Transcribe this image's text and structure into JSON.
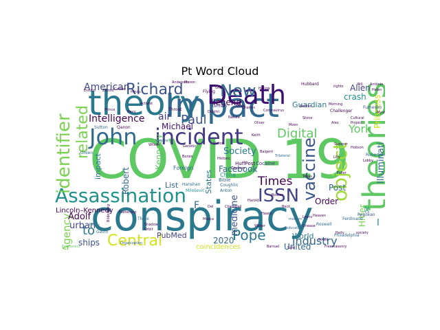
{
  "title": "Pt Word Cloud",
  "words": [
    {
      "text": "COVID-19",
      "color": "#5ec962"
    },
    {
      "text": "conspiracy",
      "color": "#2a788e"
    },
    {
      "text": "theory",
      "color": "#2a788e"
    },
    {
      "text": "Impact",
      "color": "#31688e"
    },
    {
      "text": "theories",
      "color": "#5ec962"
    },
    {
      "text": "Death",
      "color": "#3b0f70"
    },
    {
      "text": "incident",
      "color": "#443983"
    },
    {
      "text": "John",
      "color": "#31688e"
    },
    {
      "text": "Assassination",
      "color": "#21918c"
    },
    {
      "text": "object",
      "color": "#a0da39"
    },
    {
      "text": "identifier",
      "color": "#7ad151"
    },
    {
      "text": "ISSN",
      "color": "#414487"
    },
    {
      "text": "Central",
      "color": "#d2e21b"
    },
    {
      "text": "vaccine",
      "color": "#3b528b"
    },
    {
      "text": "New",
      "color": "#31688e"
    },
    {
      "text": "Richard",
      "color": "#3b528b"
    },
    {
      "text": "Pope",
      "color": "#2a788e"
    },
    {
      "text": "related",
      "color": "#7ad151"
    },
    {
      "text": "Paul",
      "color": "#3b528b"
    },
    {
      "text": "Digital",
      "color": "#5ec962"
    },
    {
      "text": "Times",
      "color": "#440154"
    },
    {
      "text": "industry",
      "color": "#31688e"
    },
    {
      "text": "to",
      "color": "#2a788e"
    },
    {
      "text": "American",
      "color": "#414487"
    },
    {
      "text": "Intelligence",
      "color": "#440154"
    },
    {
      "text": "Agency",
      "color": "#7ad151"
    },
    {
      "text": "York",
      "color": "#5ec962"
    },
    {
      "text": "Alien",
      "color": "#414487"
    },
    {
      "text": "crash",
      "color": "#21918c"
    },
    {
      "text": "Guardian",
      "color": "#2a788e"
    },
    {
      "text": "Society",
      "color": "#2a788e"
    },
    {
      "text": "Facebook",
      "color": "#31688e"
    },
    {
      "text": "Illuminati",
      "color": "#31688e"
    },
    {
      "text": "Princess",
      "color": "#d2e21b"
    },
    {
      "text": "Adolf",
      "color": "#440154"
    },
    {
      "text": "urban",
      "color": "#414487"
    },
    {
      "text": "ships",
      "color": "#3b528b"
    },
    {
      "text": "PubMed",
      "color": "#414487"
    },
    {
      "text": "2020",
      "color": "#31688e"
    },
    {
      "text": "United",
      "color": "#31688e"
    },
    {
      "text": "Post",
      "color": "#31688e"
    },
    {
      "text": "Order",
      "color": "#440154"
    },
    {
      "text": "World",
      "color": "#2a788e"
    },
    {
      "text": "Hitler",
      "color": "#7ad151"
    },
    {
      "text": "Michael",
      "color": "#3b0f70"
    },
    {
      "text": "air",
      "color": "#443983"
    },
    {
      "text": "legend",
      "color": "#440154"
    },
    {
      "text": "Kennedy",
      "color": "#5ec962"
    },
    {
      "text": "impact",
      "color": "#2a788e"
    },
    {
      "text": "Robert",
      "color": "#31688e"
    },
    {
      "text": "List",
      "color": "#31688e"
    },
    {
      "text": "States",
      "color": "#2a788e"
    },
    {
      "text": "medicine",
      "color": "#3b528b"
    },
    {
      "text": "Lincoln–Kennedy",
      "color": "#440154"
    },
    {
      "text": "coincidences",
      "color": "#d2e21b"
    },
    {
      "text": "F.",
      "color": "#31688e"
    },
    {
      "text": "X",
      "color": "#21918c"
    },
    {
      "text": "I",
      "color": "#21918c"
    },
    {
      "text": "Foreign",
      "color": "#31688e"
    },
    {
      "text": "China",
      "color": "#21918c"
    },
    {
      "text": "Bible",
      "color": "#31688e"
    },
    {
      "text": "HuffPost",
      "color": "#440154"
    },
    {
      "text": "Cocaine",
      "color": "#443983"
    },
    {
      "text": "Thule",
      "color": "#31688e"
    },
    {
      "text": "Roswell",
      "color": "#31688e"
    },
    {
      "text": "Philadelphia",
      "color": "#31688e"
    },
    {
      "text": "Robertson",
      "color": "#31688e"
    },
    {
      "text": "Hubbard",
      "color": "#440154"
    },
    {
      "text": "Fumenko",
      "color": "#3b528b"
    },
    {
      "text": "Challenger",
      "color": "#440154"
    },
    {
      "text": "Flattening",
      "color": "#440154"
    },
    {
      "text": "Ferdinand",
      "color": "#31688e"
    },
    {
      "text": "Replikan",
      "color": "#3b528b"
    },
    {
      "text": "Hanshan",
      "color": "#31688e"
    },
    {
      "text": "Milošević",
      "color": "#21918c"
    },
    {
      "text": "Coughlin",
      "color": "#31688e"
    },
    {
      "text": "Anton",
      "color": "#31688e"
    },
    {
      "text": "Grey",
      "color": "#440154"
    },
    {
      "text": "Lennon",
      "color": "#414487"
    },
    {
      "text": "Throat",
      "color": "#440154"
    },
    {
      "text": "Green",
      "color": "#31688e"
    },
    {
      "text": "Sutton",
      "color": "#31688e"
    },
    {
      "text": "Gavin",
      "color": "#31688e"
    },
    {
      "text": "Qanon",
      "color": "#440154"
    },
    {
      "text": "Flying",
      "color": "#440154"
    },
    {
      "text": "Estulin",
      "color": "#440154"
    },
    {
      "text": "Zionist",
      "color": "#440154"
    },
    {
      "text": "Cultural",
      "color": "#440154"
    },
    {
      "text": "Project",
      "color": "#440154"
    },
    {
      "text": "Hindu",
      "color": "#2a788e"
    },
    {
      "text": "activist",
      "color": "#440154"
    },
    {
      "text": "Vaccine",
      "color": "#31688e"
    },
    {
      "text": "education",
      "color": "#31688e"
    },
    {
      "text": "modern",
      "color": "#31688e"
    },
    {
      "text": "Trilateral",
      "color": "#31688e"
    },
    {
      "text": "Party",
      "color": "#440154"
    },
    {
      "text": "South",
      "color": "#440154"
    },
    {
      "text": "Safe",
      "color": "#440154"
    },
    {
      "text": "Organization",
      "color": "#31688e"
    },
    {
      "text": "Benton",
      "color": "#440154"
    },
    {
      "text": "Nature",
      "color": "#440154"
    },
    {
      "text": "Hindu",
      "color": "#440154"
    },
    {
      "text": "Chemtrail",
      "color": "#440154"
    },
    {
      "text": "Del",
      "color": "#440154"
    },
    {
      "text": "Charles",
      "color": "#440154"
    },
    {
      "text": "Morning",
      "color": "#440154"
    },
    {
      "text": "Harold",
      "color": "#440154"
    },
    {
      "text": "Bilderberg",
      "color": "#440154"
    },
    {
      "text": "Economics",
      "color": "#5ec962"
    },
    {
      "text": "Freemasonry",
      "color": "#440154"
    },
    {
      "text": "Barruel",
      "color": "#440154"
    },
    {
      "text": "Hollow",
      "color": "#440154"
    },
    {
      "text": "Alex",
      "color": "#440154"
    },
    {
      "text": "Antônio",
      "color": "#440154"
    },
    {
      "text": "Helen",
      "color": "#440154"
    },
    {
      "text": "Bill",
      "color": "#440154"
    },
    {
      "text": "rights",
      "color": "#440154"
    },
    {
      "text": "Lobby",
      "color": "#440154"
    },
    {
      "text": "Sumner",
      "color": "#440154"
    },
    {
      "text": "Hobson",
      "color": "#440154"
    },
    {
      "text": "Bones",
      "color": "#440154"
    },
    {
      "text": "Wilson",
      "color": "#440154"
    },
    {
      "text": "Genetic",
      "color": "#440154"
    },
    {
      "text": "Historic",
      "color": "#440154"
    },
    {
      "text": "Zoroson",
      "color": "#440154"
    },
    {
      "text": "Baigent",
      "color": "#440154"
    },
    {
      "text": "Coronavirus",
      "color": "#440154"
    },
    {
      "text": "Dimitri",
      "color": "#440154"
    },
    {
      "text": "Mason",
      "color": "#440154"
    },
    {
      "text": "Anderson",
      "color": "#440154"
    },
    {
      "text": "Grow",
      "color": "#440154"
    },
    {
      "text": "society",
      "color": "#440154"
    },
    {
      "text": "Haarp",
      "color": "#440154"
    },
    {
      "text": "Lyons",
      "color": "#440154"
    },
    {
      "text": "Unease",
      "color": "#440154"
    },
    {
      "text": "Mystic",
      "color": "#440154"
    },
    {
      "text": "Cartier",
      "color": "#440154"
    },
    {
      "text": "Keith",
      "color": "#440154"
    },
    {
      "text": "Oliver",
      "color": "#440154"
    },
    {
      "text": "Lilly",
      "color": "#440154"
    },
    {
      "text": "Victor",
      "color": "#440154"
    },
    {
      "text": "Orbit",
      "color": "#440154"
    },
    {
      "text": "Stone",
      "color": "#440154"
    },
    {
      "text": "Moon",
      "color": "#440154"
    },
    {
      "text": "Heaven",
      "color": "#440154"
    },
    {
      "text": "Weber",
      "color": "#440154"
    },
    {
      "text": "Shadow",
      "color": "#440154"
    },
    {
      "text": "Prince",
      "color": "#440154"
    },
    {
      "text": "Navy",
      "color": "#440154"
    },
    {
      "text": "Texas",
      "color": "#440154"
    },
    {
      "text": "Mecca",
      "color": "#440154"
    },
    {
      "text": "Beck",
      "color": "#440154"
    },
    {
      "text": "Boston",
      "color": "#440154"
    },
    {
      "text": "Fuller",
      "color": "#440154"
    }
  ]
}
